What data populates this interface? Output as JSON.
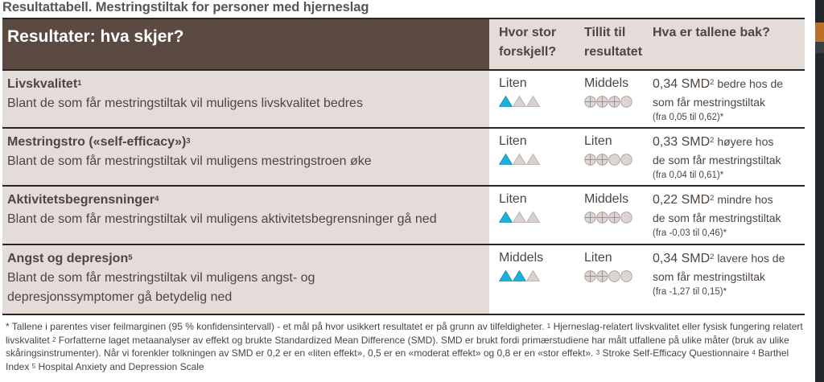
{
  "page_title": "Resultattabell. Mestringstiltak for personer med hjerneslag",
  "header": {
    "outcome_col": "Resultater: hva skjer?",
    "effect_col_line1": "Hvor stor",
    "effect_col_line2": "forskjell?",
    "certainty_col_line1": "Tillit til",
    "certainty_col_line2": "resultatet",
    "numbers_col": "Hva er tallene bak?"
  },
  "colors": {
    "header_dark": "#5a4a42",
    "cell_tint": "#e4dcd9",
    "triangle_filled": "#1ab0d8",
    "triangle_empty": "#d9d1ce",
    "circle_fill": "#dcd5d2",
    "rule": "#2b2523"
  },
  "rows": [
    {
      "title": "Livskvalitet",
      "title_sup": "1",
      "description": "Blant de som får mestringstiltak vil muligens livskvalitet bedres",
      "effect_label": "Liten",
      "effect_triangles_filled": 1,
      "effect_triangles_total": 3,
      "certainty_label": "Middels",
      "certainty_plus_circles": 3,
      "certainty_circles_total": 4,
      "smd_value": "0,34 SMD",
      "smd_sup": "2",
      "smd_text_a": " bedre hos de",
      "smd_text_b": "som får mestringstiltak",
      "ci": "(fra 0,05 til 0,62)*"
    },
    {
      "title": "Mestringstro («self-efficacy»)",
      "title_sup": "3",
      "description": "Blant de som får mestringstiltak vil muligens mestringstroen øke",
      "effect_label": "Liten",
      "effect_triangles_filled": 1,
      "effect_triangles_total": 3,
      "certainty_label": "Liten",
      "certainty_plus_circles": 2,
      "certainty_circles_total": 4,
      "smd_value": "0,33 SMD",
      "smd_sup": "2",
      "smd_text_a": " høyere hos",
      "smd_text_b": "de som får mestringstiltak",
      "ci": "(fra 0,04 til 0,61)*"
    },
    {
      "title": "Aktivitetsbegrensninger",
      "title_sup": "4",
      "description": "Blant de som får mestringstiltak vil muligens aktivitetsbegrensninger gå ned",
      "effect_label": "Liten",
      "effect_triangles_filled": 1,
      "effect_triangles_total": 3,
      "certainty_label": "Middels",
      "certainty_plus_circles": 3,
      "certainty_circles_total": 4,
      "smd_value": "0,22 SMD",
      "smd_sup": "2",
      "smd_text_a": " mindre hos",
      "smd_text_b": "de som får mestringstiltak",
      "ci": "(fra -0,03 til 0,46)*"
    },
    {
      "title": "Angst og depresjon",
      "title_sup": "5",
      "description": "Blant de som får mestringstiltak vil muligens angst- og",
      "description_line2": "depresjonssymptomer gå betydelig ned",
      "effect_label": "Middels",
      "effect_triangles_filled": 2,
      "effect_triangles_total": 3,
      "certainty_label": "Liten",
      "certainty_plus_circles": 2,
      "certainty_circles_total": 4,
      "smd_value": "0,34 SMD",
      "smd_sup": "2",
      "smd_text_a": " lavere hos de",
      "smd_text_b": "som får mestringstiltak",
      "ci": "(fra -1,27 til 0,15)*"
    }
  ],
  "footnotes": {
    "p1": "* Tallene i parentes viser feilmarginen (95 % konfidensintervall) - et mål på hvor usikkert resultatet er på grunn av tilfeldigheter. ",
    "s1": "1",
    "p2": " Hjerneslag-relatert livskvalitet eller fysisk fungering relatert livskvalitet   ",
    "s2": "2",
    "p3": " Forfatterne laget metaanalyser av effekt og brukte Standardized Mean Difference (SMD). SMD er brukt fordi primærstudiene har målt utfallene på ulike måter (bruk av ulike skåringsinstrumenter). Når vi forenkler tolkningen av SMD er 0,2 er en «liten effekt», 0,5 er en «moderat effekt» og 0,8 er en «stor effekt». ",
    "s3": "3",
    "p4": " Stroke Self-Efficacy Questionnaire ",
    "s4": "4",
    "p5": " Barthel Index ",
    "s5": "5",
    "p6": " Hospital Anxiety and Depression Scale"
  }
}
